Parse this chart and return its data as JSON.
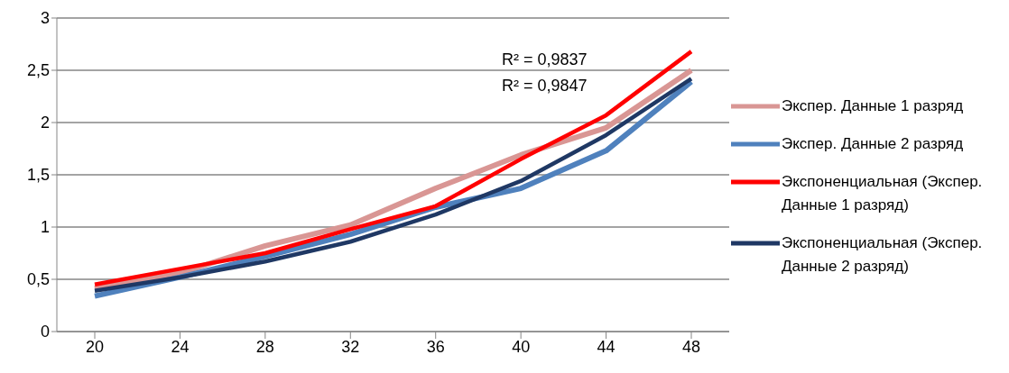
{
  "chart_data": {
    "type": "line",
    "categories": [
      "20",
      "24",
      "28",
      "32",
      "36",
      "40",
      "44",
      "48"
    ],
    "series": [
      {
        "name": "Экспер. Данные 1 разряд",
        "color": "#d99694",
        "values": [
          0.41,
          0.56,
          0.82,
          1.02,
          1.37,
          1.69,
          1.95,
          2.5
        ]
      },
      {
        "name": "Экспер. Данные 2 разряд",
        "color": "#4f81bd",
        "values": [
          0.34,
          0.52,
          0.72,
          0.93,
          1.19,
          1.37,
          1.73,
          2.39
        ]
      },
      {
        "name": "Экспоненциальная (Экспер. Данные 1 разряд)",
        "color": "#ff0000",
        "values": [
          0.45,
          0.6,
          0.75,
          0.98,
          1.2,
          1.65,
          2.07,
          2.68
        ]
      },
      {
        "name": "Экспоненциальная (Экспер. Данные 2 разряд)",
        "color": "#1f3864",
        "values": [
          0.39,
          0.52,
          0.67,
          0.86,
          1.12,
          1.44,
          1.88,
          2.42
        ]
      }
    ],
    "ylim": [
      0,
      3
    ],
    "yticks": [
      0,
      {
        "value": 0.5,
        "label": "0,5"
      },
      1,
      {
        "value": 1.5,
        "label": "1,5"
      },
      2,
      {
        "value": 2.5,
        "label": "2,5"
      },
      3
    ],
    "grid": "y",
    "legend": "right",
    "marker": "none",
    "line_style": "solid",
    "annotations": [
      "R² = 0,9837",
      "R² = 0,9847"
    ]
  }
}
